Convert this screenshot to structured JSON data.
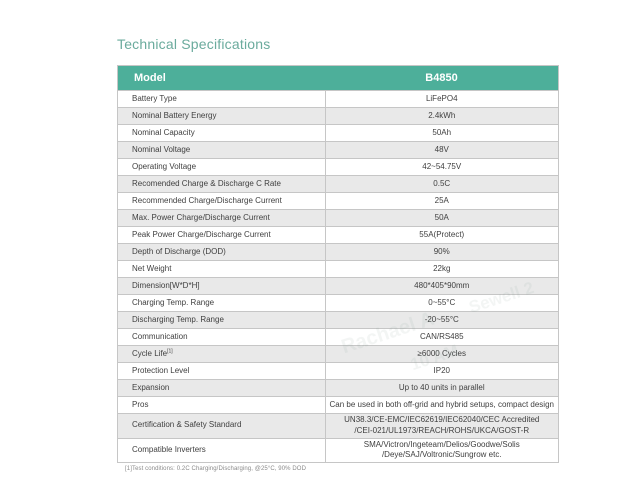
{
  "page_title": "Technical Specifications",
  "table": {
    "header": {
      "model_label": "Model",
      "model_value": "B4850"
    },
    "rows": [
      {
        "label": "Battery Type",
        "value": "LiFePO4"
      },
      {
        "label": "Nominal Battery Energy",
        "value": "2.4kWh"
      },
      {
        "label": "Nominal Capacity",
        "value": "50Ah"
      },
      {
        "label": "Nominal Voltage",
        "value": "48V"
      },
      {
        "label": "Operating Voltage",
        "value": "42~54.75V"
      },
      {
        "label": "Recomended Charge & Discharge C Rate",
        "value": "0.5C"
      },
      {
        "label": "Recommended Charge/Discharge Current",
        "value": "25A"
      },
      {
        "label": "Max. Power Charge/Discharge Current",
        "value": "50A"
      },
      {
        "label": "Peak Power Charge/Discharge Current",
        "value": "55A(Protect)"
      },
      {
        "label": "Depth of Discharge (DOD)",
        "value": "90%"
      },
      {
        "label": "Net Weight",
        "value": "22kg"
      },
      {
        "label": "Dimension[W*D*H]",
        "value": "480*405*90mm"
      },
      {
        "label": "Charging Temp. Range",
        "value": "0~55°C"
      },
      {
        "label": "Discharging Temp. Range",
        "value": "-20~55°C"
      },
      {
        "label": "Communication",
        "value": "CAN/RS485"
      },
      {
        "label": "Cycle Life",
        "label_sup": "[1]",
        "value": "≥6000 Cycles"
      },
      {
        "label": "Protection Level",
        "value": "IP20"
      },
      {
        "label": "Expansion",
        "value": "Up to 40 units in parallel"
      },
      {
        "label": "Pros",
        "value": "Can be used in both off-grid and hybrid setups, compact design"
      },
      {
        "label": "Certification & Safety Standard",
        "value": "UN38.3/CE-EMC/IEC62619/IEC62040/CEC Accredited\n/CEI-021/UL1973/REACH/ROHS/UKCA/GOST-R"
      },
      {
        "label": "Compatible Inverters",
        "value": "SMA/Victron/Ingeteam/Delios/Goodwe/Solis\n/Deye/SAJ/Voltronic/Sungrow etc."
      }
    ],
    "footnote": "[1]Test conditions: 0.2C Charging/Discharging, @25°C, 90% DOD"
  },
  "watermarks": [
    "Rachael A",
    "Sewell 2",
    "10 AM"
  ],
  "colors": {
    "header_bg": "#4daf9a",
    "title_text": "#6bab9d",
    "row_alt_bg": "#e9e9e9",
    "border": "#c6c6c6",
    "body_text": "#3f3f3f"
  }
}
